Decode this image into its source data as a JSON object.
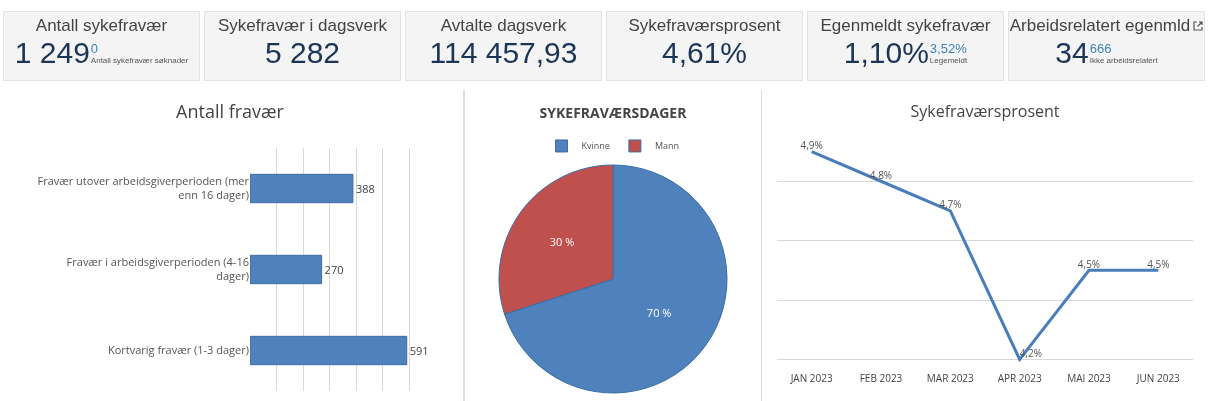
{
  "chart_data": [
    {
      "type": "other",
      "categories": [
        "Antall sykefravær",
        "Sykefravær i dagsverk",
        "Avtalte dagsverk",
        "Sykefraværsprosent",
        "Egenmeldt sykefravær",
        "Arbeidsrelatert egenmld"
      ],
      "value_labels": [
        "1 249",
        "5 282",
        "114 457,93",
        "4,61%",
        "1,10%",
        "34"
      ],
      "annotations": [
        {
          "text": "0",
          "x": "Antall sykefravær"
        },
        {
          "text": "Antall sykefravær søknader",
          "x": "Antall sykefravær"
        },
        {
          "text": "3,52%",
          "x": "Egenmeldt sykefravær"
        },
        {
          "text": "Legemeldt",
          "x": "Egenmeldt sykefravær"
        },
        {
          "text": "666",
          "x": "Arbeidsrelatert egenmld"
        },
        {
          "text": "Ikke arbeidsrelatert",
          "x": "Arbeidsrelatert egenmld"
        }
      ]
    },
    {
      "type": "bar",
      "orientation": "horizontal",
      "title": "Antall fravær",
      "categories": [
        "Fravær utover arbeidsgiverperioden (mer enn 16 dager)",
        "Fravær i arbeidsgiverperioden (4-16 dager)",
        "Kortvarig fravær (1-3 dager)"
      ],
      "values": [
        388,
        270,
        591
      ],
      "color": "#4f81bd",
      "data_labels": true,
      "tick_labels": "y",
      "grid": "x",
      "legend": false
    },
    {
      "type": "pie",
      "title": "SYKEFRAVÆRSDAGER",
      "categories": [
        "Kvinne",
        "Mann"
      ],
      "values": [
        70,
        30
      ],
      "colors": [
        "#4f81bd",
        "#c0504d"
      ],
      "value_labels": [
        "70 %",
        "30 %"
      ],
      "legend": "top"
    },
    {
      "type": "line",
      "title": "Sykefraværsprosent",
      "categories": [
        "JAN 2023",
        "FEB 2023",
        "MAR 2023",
        "APR 2023",
        "MAI 2023",
        "JUN 2023"
      ],
      "values": [
        4.9,
        4.8,
        4.7,
        4.2,
        4.5,
        4.5
      ],
      "value_labels": [
        "4,9%",
        "4,8%",
        "4,7%",
        "4,2%",
        "4,5%",
        "4,5%"
      ],
      "color": "#4a7ebb",
      "tick_labels": "x",
      "grid": "y",
      "marker": "none",
      "line_style": "solid",
      "legend": false
    }
  ]
}
